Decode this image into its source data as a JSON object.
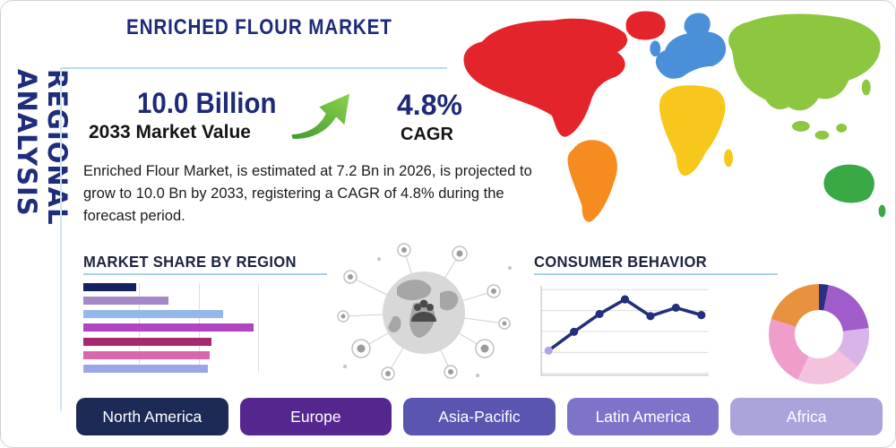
{
  "page": {
    "vertical_label": "REGIONAL ANALYSIS",
    "title": "ENRICHED FLOUR MARKET"
  },
  "highlights": {
    "value": "10.0 Billion",
    "value_label": "2033 Market Value",
    "cagr": "4.8%",
    "cagr_label": "CAGR",
    "description": "Enriched Flour Market, is estimated at 7.2 Bn in 2026, is projected to grow to 10.0 Bn by 2033, registering a CAGR of 4.8% during the forecast period."
  },
  "colors": {
    "accent_navy": "#1e2a78",
    "underline_blue": "#a4d4e6",
    "growth_arrow_green": "#6db33f",
    "map": {
      "north_america": "#e3242b",
      "south_america": "#f68b1f",
      "europe": "#4a90d9",
      "africa": "#f8c71c",
      "asia": "#8dc63f",
      "australia": "#39a845"
    }
  },
  "region_buttons": [
    {
      "label": "North America",
      "color": "#1d2a56"
    },
    {
      "label": "Europe",
      "color": "#56268f"
    },
    {
      "label": "Asia-Pacific",
      "color": "#5a55b0"
    },
    {
      "label": "Latin America",
      "color": "#7d74ca"
    },
    {
      "label": "Africa",
      "color": "#aaa4da"
    }
  ],
  "chart_data": [
    {
      "type": "bar",
      "title": "MARKET SHARE BY REGION",
      "orientation": "horizontal",
      "values": [
        29,
        47,
        77,
        94,
        71,
        70,
        69
      ],
      "xlim": [
        0,
        100
      ],
      "colors": [
        "#14235f",
        "#a488c8",
        "#93b9ea",
        "#b144c0",
        "#a8286e",
        "#d867ab",
        "#9aa6e8"
      ],
      "grid": "vertical",
      "tick_labels": []
    },
    {
      "type": "line",
      "title": "CONSUMER BEHAVIOR",
      "x": [
        1,
        2,
        3,
        4,
        5,
        6,
        7
      ],
      "values": [
        2.0,
        3.8,
        5.5,
        6.9,
        5.3,
        6.1,
        5.4
      ],
      "ylim": [
        0,
        8
      ],
      "line_color": "#232e7d",
      "marker_colors": [
        "#b3a5e3",
        "#232e7d",
        "#232e7d",
        "#232e7d",
        "#232e7d",
        "#232e7d",
        "#232e7d"
      ],
      "grid": "horizontal",
      "tick_labels": []
    },
    {
      "type": "pie",
      "hole": 0.52,
      "values": [
        3,
        20,
        13,
        21,
        23,
        20
      ],
      "colors": [
        "#2b2f82",
        "#a05cc8",
        "#d8b4e8",
        "#f3c3dd",
        "#ef9ec9",
        "#e8913f"
      ]
    }
  ]
}
